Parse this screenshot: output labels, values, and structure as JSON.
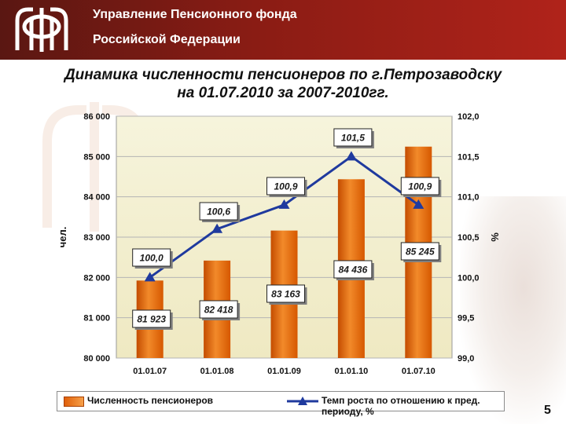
{
  "header": {
    "org_line1": "Управление Пенсионного фонда",
    "org_line2": "Российской Федерации"
  },
  "title": {
    "line1": "Динамика численности пенсионеров по г.Петрозаводску",
    "line2": "на 01.07.2010 за 2007-2010гг."
  },
  "chart_data": {
    "type": "bar",
    "title": "Динамика численности пенсионеров по г.Петрозаводску на 01.07.2010 за 2007-2010гг.",
    "categories": [
      "01.01.07",
      "01.01.08",
      "01.01.09",
      "01.01.10",
      "01.07.10"
    ],
    "series": [
      {
        "name": "Численность пенсионеров",
        "type": "bar",
        "axis": "left",
        "values": [
          81923,
          82418,
          83163,
          84436,
          85245
        ],
        "labels": [
          "81 923",
          "82 418",
          "83 163",
          "84 436",
          "85 245"
        ],
        "color": "#e86a10"
      },
      {
        "name": "Темп роста по отношению к пред. периоду, %",
        "type": "line",
        "axis": "right",
        "values": [
          100.0,
          100.6,
          100.9,
          101.5,
          100.9
        ],
        "labels": [
          "100,0",
          "100,6",
          "100,9",
          "101,5",
          "100,9"
        ],
        "color": "#1f3a9e"
      }
    ],
    "ylabel": "чел.",
    "ylim": [
      80000,
      86000
    ],
    "yticks": [
      "80 000",
      "81 000",
      "82 000",
      "83 000",
      "84 000",
      "85 000",
      "86 000"
    ],
    "y2label": "%",
    "y2lim": [
      99.0,
      102.0
    ],
    "y2ticks": [
      "99,0",
      "99,5",
      "100,0",
      "100,5",
      "101,0",
      "101,5",
      "102,0"
    ],
    "grid": true,
    "legend_position": "bottom"
  },
  "page_number": "5",
  "colors": {
    "header_bg": "#8a1c14",
    "bar": "#e86a10",
    "line": "#1f3a9e",
    "plot_bg": "#f4f2d6"
  }
}
